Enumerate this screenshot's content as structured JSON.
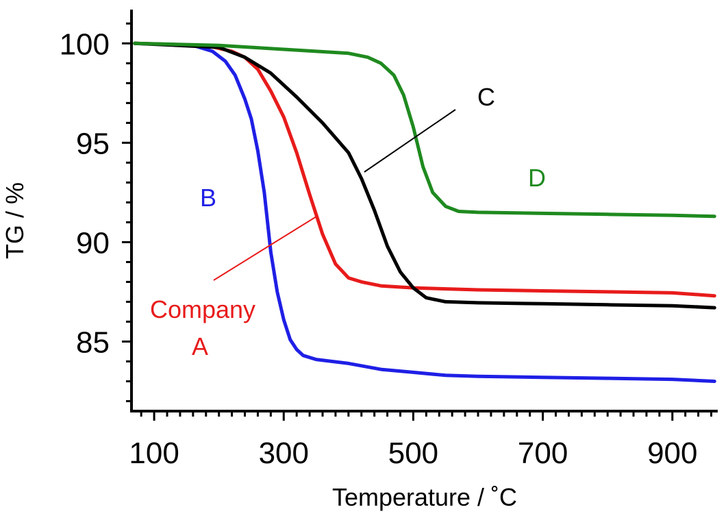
{
  "chart_data": {
    "type": "line",
    "xlabel": "Temperature  /  ˚C",
    "ylabel": "TG / %",
    "xlim": [
      65,
      970
    ],
    "ylim": [
      81.5,
      101.7
    ],
    "xticks": [
      100,
      300,
      500,
      700,
      900
    ],
    "yticks": [
      85,
      90,
      95,
      100
    ],
    "x_minor_step": 20,
    "y_minor_step": 1,
    "grid": false,
    "legend": "none",
    "series": [
      {
        "label_lines": [
          "B"
        ],
        "color": "#1f1fe6",
        "points": [
          [
            70,
            100.0
          ],
          [
            160,
            99.9
          ],
          [
            190,
            99.6
          ],
          [
            210,
            99.1
          ],
          [
            225,
            98.4
          ],
          [
            240,
            97.2
          ],
          [
            250,
            96.2
          ],
          [
            260,
            94.6
          ],
          [
            270,
            92.5
          ],
          [
            280,
            89.5
          ],
          [
            290,
            87.5
          ],
          [
            300,
            86.1
          ],
          [
            310,
            85.1
          ],
          [
            320,
            84.6
          ],
          [
            330,
            84.3
          ],
          [
            350,
            84.1
          ],
          [
            400,
            83.9
          ],
          [
            450,
            83.6
          ],
          [
            500,
            83.45
          ],
          [
            550,
            83.3
          ],
          [
            600,
            83.25
          ],
          [
            700,
            83.2
          ],
          [
            800,
            83.15
          ],
          [
            900,
            83.1
          ],
          [
            965,
            83.0
          ]
        ]
      },
      {
        "label_lines": [
          "Company",
          "A"
        ],
        "color": "#e81b1b",
        "points": [
          [
            70,
            100.0
          ],
          [
            180,
            99.9
          ],
          [
            220,
            99.6
          ],
          [
            240,
            99.3
          ],
          [
            260,
            98.7
          ],
          [
            280,
            97.6
          ],
          [
            300,
            96.3
          ],
          [
            320,
            94.5
          ],
          [
            340,
            92.4
          ],
          [
            360,
            90.4
          ],
          [
            380,
            88.9
          ],
          [
            400,
            88.2
          ],
          [
            420,
            88.0
          ],
          [
            450,
            87.8
          ],
          [
            500,
            87.7
          ],
          [
            600,
            87.6
          ],
          [
            700,
            87.55
          ],
          [
            800,
            87.5
          ],
          [
            900,
            87.45
          ],
          [
            965,
            87.3
          ]
        ]
      },
      {
        "label_lines": [
          "C"
        ],
        "color": "#000000",
        "points": [
          [
            70,
            100.0
          ],
          [
            200,
            99.8
          ],
          [
            240,
            99.3
          ],
          [
            280,
            98.5
          ],
          [
            320,
            97.3
          ],
          [
            360,
            96.0
          ],
          [
            400,
            94.5
          ],
          [
            420,
            93.2
          ],
          [
            440,
            91.6
          ],
          [
            460,
            89.8
          ],
          [
            480,
            88.5
          ],
          [
            500,
            87.7
          ],
          [
            520,
            87.2
          ],
          [
            550,
            87.0
          ],
          [
            600,
            86.95
          ],
          [
            700,
            86.9
          ],
          [
            800,
            86.85
          ],
          [
            900,
            86.8
          ],
          [
            965,
            86.7
          ]
        ]
      },
      {
        "label_lines": [
          "D"
        ],
        "color": "#1f8a1f",
        "points": [
          [
            70,
            100.0
          ],
          [
            200,
            99.9
          ],
          [
            300,
            99.7
          ],
          [
            400,
            99.5
          ],
          [
            430,
            99.3
          ],
          [
            450,
            99.0
          ],
          [
            470,
            98.4
          ],
          [
            485,
            97.4
          ],
          [
            500,
            95.8
          ],
          [
            515,
            93.8
          ],
          [
            530,
            92.5
          ],
          [
            550,
            91.8
          ],
          [
            570,
            91.55
          ],
          [
            600,
            91.5
          ],
          [
            700,
            91.45
          ],
          [
            800,
            91.4
          ],
          [
            900,
            91.35
          ],
          [
            965,
            91.3
          ]
        ]
      }
    ]
  }
}
